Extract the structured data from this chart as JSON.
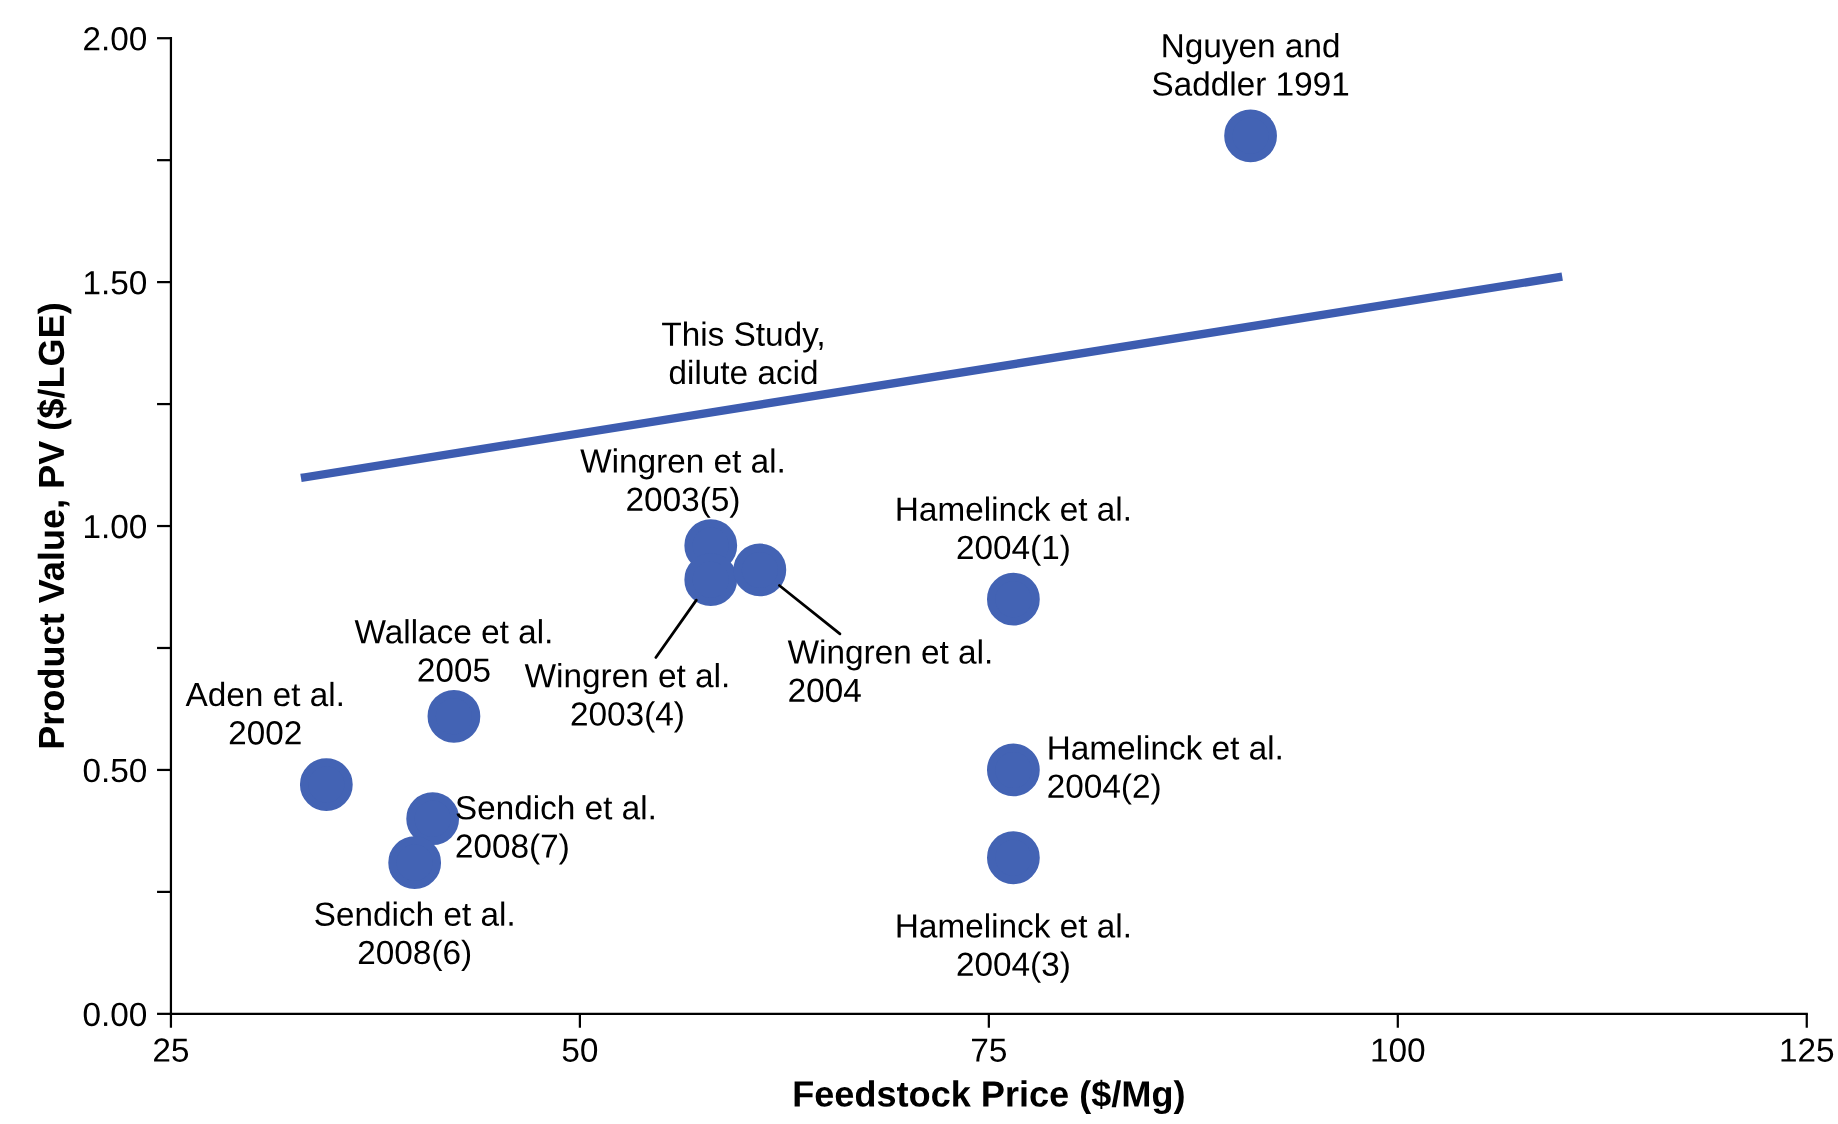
{
  "chart_data": {
    "type": "scatter",
    "xlabel": "Feedstock Price ($/Mg)",
    "ylabel": "Product Value, PV ($/LGE)",
    "xlim": [
      25,
      125
    ],
    "xticks": [
      25,
      50,
      75,
      100,
      125
    ],
    "ylim": [
      0,
      2
    ],
    "yticks": [
      {
        "value": 0,
        "label": "0.00"
      },
      {
        "value": 0.25,
        "label": null
      },
      {
        "value": 0.5,
        "label": "0.50"
      },
      {
        "value": 0.75,
        "label": null
      },
      {
        "value": 1,
        "label": "1.00"
      },
      {
        "value": 1.25,
        "label": null
      },
      {
        "value": 1.5,
        "label": "1.50"
      },
      {
        "value": 1.75,
        "label": null
      },
      {
        "value": 2,
        "label": "2.00"
      }
    ],
    "grid": false,
    "series": [
      {
        "marker": "circle",
        "color": "#4363b4",
        "x": [
          91,
          58,
          58,
          61,
          76.5,
          76.5,
          76.5,
          42.3,
          34.5,
          41,
          39.9
        ],
        "values": [
          1.8,
          0.96,
          0.89,
          0.91,
          0.85,
          0.5,
          0.32,
          0.61,
          0.47,
          0.4,
          0.31
        ]
      },
      {
        "type": "line",
        "color": "#3d5cb0",
        "line_style": "solid",
        "x": [
          33.2,
          109.8
        ],
        "values": [
          1.1,
          1.51
        ]
      }
    ],
    "annotations": [
      {
        "text": "Nguyen and\nSaddler 1991",
        "x": 91,
        "y": 1.8
      },
      {
        "text": "This Study,\ndilute acid",
        "x": 60,
        "y": 1.26
      },
      {
        "text": "Wingren et al.\n2003(5)",
        "x": 58,
        "y": 0.96
      },
      {
        "text": "Wingren et al.\n2003(4)",
        "x": 58,
        "y": 0.89
      },
      {
        "text": "Wingren et al.\n2004",
        "x": 61,
        "y": 0.91
      },
      {
        "text": "Hamelinck et al.\n2004(1)",
        "x": 76.5,
        "y": 0.85
      },
      {
        "text": "Hamelinck et al.\n2004(2)",
        "x": 76.5,
        "y": 0.5
      },
      {
        "text": "Hamelinck et al.\n2004(3)",
        "x": 76.5,
        "y": 0.32
      },
      {
        "text": "Wallace et al.\n2005",
        "x": 42.3,
        "y": 0.61
      },
      {
        "text": "Aden et al.\n2002",
        "x": 34.5,
        "y": 0.47
      },
      {
        "text": "Sendich et al.\n2008(7)",
        "x": 41,
        "y": 0.4
      },
      {
        "text": "Sendich et al.\n2008(6)",
        "x": 39.9,
        "y": 0.31
      }
    ]
  }
}
